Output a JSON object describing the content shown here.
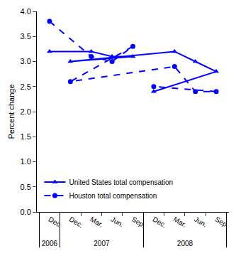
{
  "chart_data": {
    "type": "line",
    "categories": [
      "Dec.",
      "Mar.",
      "Jun.",
      "Sep.",
      "Dec.",
      "Mar.",
      "Jun.",
      "Sep.",
      "Dec."
    ],
    "category_groups": [
      "2006",
      "2007",
      "2007",
      "2007",
      "2007",
      "2008",
      "2008",
      "2008",
      "2008"
    ],
    "y_label": "Percent change",
    "ylim": [
      0,
      4
    ],
    "yticks": [
      {
        "value": 0,
        "label": "0.0"
      },
      0.5,
      {
        "value": 1,
        "label": "1.0"
      },
      1.5,
      {
        "value": 2,
        "label": "2.0"
      },
      2.5,
      {
        "value": 3,
        "label": "3.0"
      },
      3.5,
      {
        "value": 4,
        "label": "4.0"
      }
    ],
    "grid": false,
    "legend": "bottom left",
    "series": [
      {
        "name": "United States total compensation",
        "color": "#0000ff",
        "marker": "triangle-up",
        "line_style": "solid",
        "values": [
          3.2,
          3.2,
          3.1,
          3.1,
          3.0,
          3.2,
          3.0,
          2.8,
          2.4
        ]
      },
      {
        "name": "Houston total compensation",
        "color": "#0000ff",
        "marker": "circle",
        "line_style": "dash",
        "values": [
          3.8,
          3.1,
          3.0,
          3.3,
          2.6,
          2.9,
          2.4,
          2.4,
          2.5
        ]
      }
    ]
  }
}
